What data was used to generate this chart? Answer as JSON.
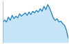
{
  "x": [
    0,
    1,
    2,
    3,
    4,
    5,
    6,
    7,
    8,
    9,
    10,
    11,
    12,
    13,
    14,
    15,
    16,
    17,
    18,
    19,
    20,
    21,
    22,
    23,
    24,
    25,
    26,
    27,
    28,
    29,
    30,
    31,
    32,
    33,
    34,
    35
  ],
  "y": [
    48,
    55,
    50,
    62,
    54,
    66,
    58,
    64,
    60,
    70,
    64,
    68,
    72,
    66,
    74,
    68,
    76,
    72,
    78,
    74,
    82,
    76,
    88,
    80,
    92,
    84,
    72,
    60,
    54,
    58,
    50,
    52,
    46,
    42,
    30,
    10
  ],
  "line_color": "#1b7dc0",
  "fill_color": "#c5e5f7",
  "background_color": "#ffffff",
  "ylim_min": 0,
  "ylim_max": 100,
  "xlim_min": 0,
  "xlim_max": 35,
  "left_axis_color": "#bbbbbb",
  "line_width": 0.9
}
